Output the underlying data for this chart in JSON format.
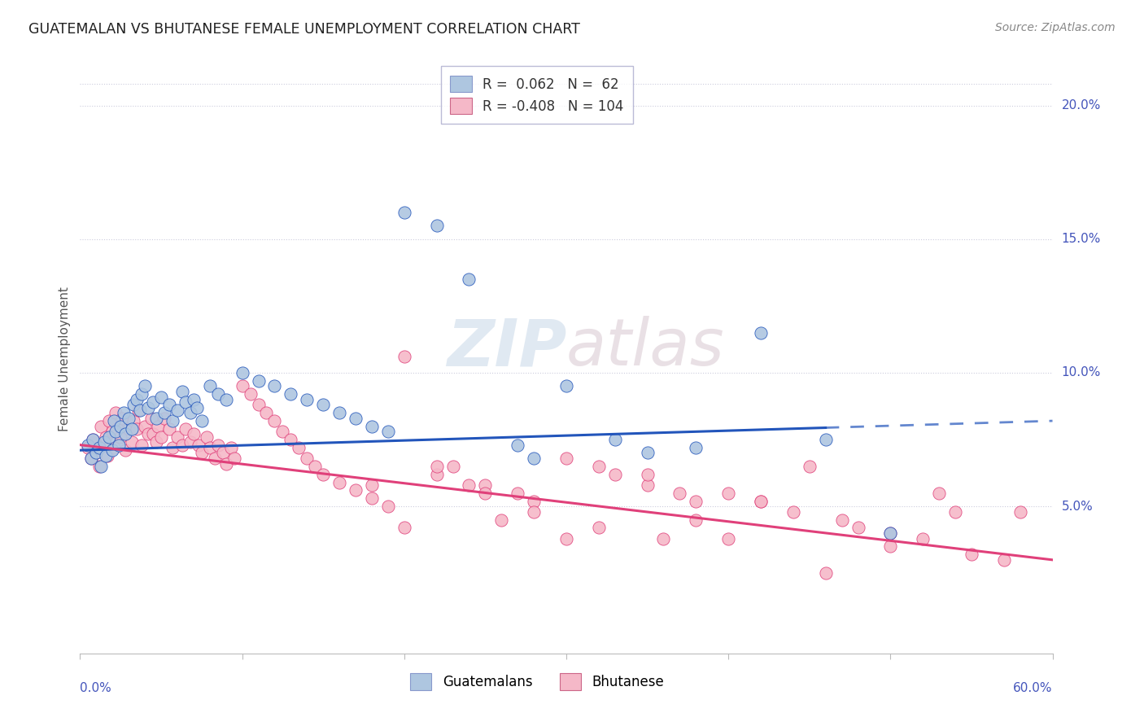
{
  "title": "GUATEMALAN VS BHUTANESE FEMALE UNEMPLOYMENT CORRELATION CHART",
  "source": "Source: ZipAtlas.com",
  "ylabel": "Female Unemployment",
  "right_yticks": [
    "20.0%",
    "15.0%",
    "10.0%",
    "5.0%"
  ],
  "right_ytick_vals": [
    0.2,
    0.15,
    0.1,
    0.05
  ],
  "xlim": [
    0.0,
    0.6
  ],
  "ylim": [
    -0.005,
    0.215
  ],
  "watermark": "ZIPatlas",
  "guatemalan_color": "#aec6e0",
  "bhutanese_color": "#f5b8c8",
  "line_blue": "#2255bb",
  "line_pink": "#e0407a",
  "blue_line_start_x": 0.0,
  "blue_line_start_y": 0.071,
  "blue_line_end_x": 0.6,
  "blue_line_end_y": 0.082,
  "blue_line_solid_end": 0.46,
  "pink_line_start_x": 0.0,
  "pink_line_start_y": 0.073,
  "pink_line_end_x": 0.6,
  "pink_line_end_y": 0.03,
  "guatemalan_x": [
    0.005,
    0.007,
    0.008,
    0.01,
    0.012,
    0.013,
    0.015,
    0.016,
    0.018,
    0.02,
    0.021,
    0.022,
    0.024,
    0.025,
    0.027,
    0.028,
    0.03,
    0.032,
    0.033,
    0.035,
    0.037,
    0.038,
    0.04,
    0.042,
    0.045,
    0.047,
    0.05,
    0.052,
    0.055,
    0.057,
    0.06,
    0.063,
    0.065,
    0.068,
    0.07,
    0.072,
    0.075,
    0.08,
    0.085,
    0.09,
    0.1,
    0.11,
    0.12,
    0.13,
    0.14,
    0.15,
    0.16,
    0.17,
    0.18,
    0.19,
    0.2,
    0.22,
    0.24,
    0.27,
    0.3,
    0.33,
    0.38,
    0.42,
    0.46,
    0.5,
    0.35,
    0.28
  ],
  "guatemalan_y": [
    0.073,
    0.068,
    0.075,
    0.07,
    0.072,
    0.065,
    0.074,
    0.069,
    0.076,
    0.071,
    0.082,
    0.078,
    0.073,
    0.08,
    0.085,
    0.077,
    0.083,
    0.079,
    0.088,
    0.09,
    0.086,
    0.092,
    0.095,
    0.087,
    0.089,
    0.083,
    0.091,
    0.085,
    0.088,
    0.082,
    0.086,
    0.093,
    0.089,
    0.085,
    0.09,
    0.087,
    0.082,
    0.095,
    0.092,
    0.09,
    0.1,
    0.097,
    0.095,
    0.092,
    0.09,
    0.088,
    0.085,
    0.083,
    0.08,
    0.078,
    0.16,
    0.155,
    0.135,
    0.073,
    0.095,
    0.075,
    0.072,
    0.115,
    0.075,
    0.04,
    0.07,
    0.068
  ],
  "bhutanese_x": [
    0.005,
    0.007,
    0.008,
    0.01,
    0.012,
    0.013,
    0.015,
    0.016,
    0.017,
    0.018,
    0.02,
    0.021,
    0.022,
    0.023,
    0.025,
    0.026,
    0.028,
    0.03,
    0.032,
    0.033,
    0.035,
    0.036,
    0.038,
    0.04,
    0.042,
    0.044,
    0.045,
    0.047,
    0.048,
    0.05,
    0.052,
    0.055,
    0.057,
    0.06,
    0.063,
    0.065,
    0.068,
    0.07,
    0.073,
    0.075,
    0.078,
    0.08,
    0.083,
    0.085,
    0.088,
    0.09,
    0.093,
    0.095,
    0.1,
    0.105,
    0.11,
    0.115,
    0.12,
    0.125,
    0.13,
    0.135,
    0.14,
    0.145,
    0.15,
    0.16,
    0.17,
    0.18,
    0.19,
    0.2,
    0.22,
    0.23,
    0.25,
    0.27,
    0.28,
    0.3,
    0.32,
    0.33,
    0.35,
    0.37,
    0.38,
    0.4,
    0.42,
    0.44,
    0.45,
    0.47,
    0.48,
    0.5,
    0.52,
    0.53,
    0.55,
    0.57,
    0.58,
    0.35,
    0.38,
    0.4,
    0.25,
    0.28,
    0.3,
    0.22,
    0.18,
    0.2,
    0.24,
    0.26,
    0.32,
    0.36,
    0.42,
    0.46,
    0.5,
    0.54
  ],
  "bhutanese_y": [
    0.072,
    0.068,
    0.075,
    0.07,
    0.065,
    0.08,
    0.073,
    0.076,
    0.069,
    0.082,
    0.078,
    0.072,
    0.085,
    0.079,
    0.076,
    0.083,
    0.071,
    0.079,
    0.074,
    0.082,
    0.079,
    0.086,
    0.073,
    0.08,
    0.077,
    0.083,
    0.077,
    0.074,
    0.08,
    0.076,
    0.083,
    0.079,
    0.072,
    0.076,
    0.073,
    0.079,
    0.074,
    0.077,
    0.073,
    0.07,
    0.076,
    0.072,
    0.068,
    0.073,
    0.07,
    0.066,
    0.072,
    0.068,
    0.095,
    0.092,
    0.088,
    0.085,
    0.082,
    0.078,
    0.075,
    0.072,
    0.068,
    0.065,
    0.062,
    0.059,
    0.056,
    0.053,
    0.05,
    0.106,
    0.062,
    0.065,
    0.058,
    0.055,
    0.052,
    0.068,
    0.065,
    0.062,
    0.058,
    0.055,
    0.052,
    0.055,
    0.052,
    0.048,
    0.065,
    0.045,
    0.042,
    0.04,
    0.038,
    0.055,
    0.032,
    0.03,
    0.048,
    0.062,
    0.045,
    0.038,
    0.055,
    0.048,
    0.038,
    0.065,
    0.058,
    0.042,
    0.058,
    0.045,
    0.042,
    0.038,
    0.052,
    0.025,
    0.035,
    0.048
  ]
}
